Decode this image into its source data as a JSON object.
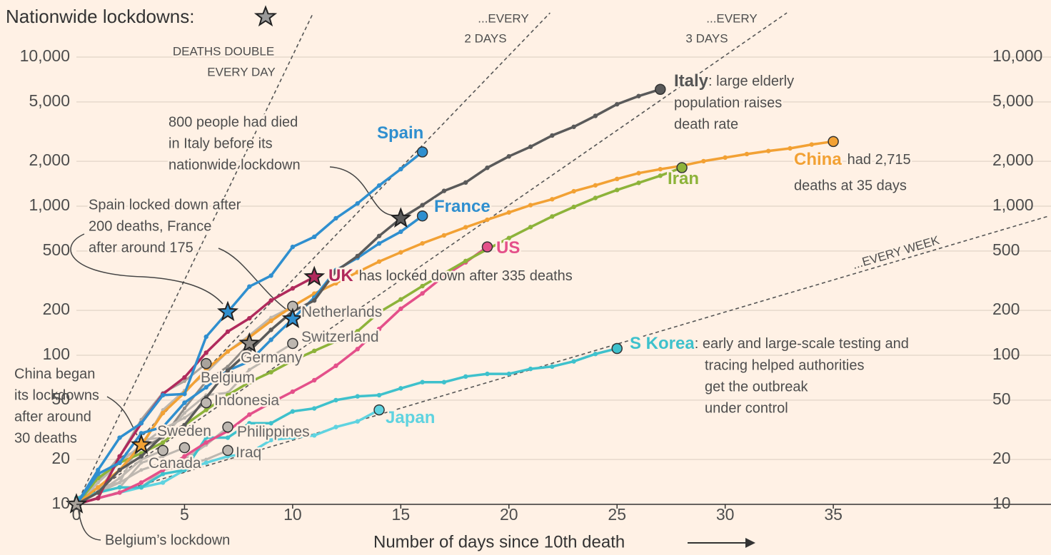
{
  "chart_data": {
    "type": "line",
    "title": "Nationwide lockdowns:",
    "x_label": "Number of days since 10th death",
    "yscale": "log",
    "xlim": [
      0,
      45
    ],
    "ylim": [
      10,
      10000
    ],
    "xticks": [
      0,
      5,
      10,
      15,
      20,
      25,
      30,
      35
    ],
    "yticks": [
      10,
      20,
      50,
      100,
      200,
      500,
      {
        "value": 1000,
        "label": "1,000"
      },
      {
        "value": 2000,
        "label": "2,000"
      },
      {
        "value": 5000,
        "label": "5,000"
      },
      {
        "value": 10000,
        "label": "10,000"
      }
    ],
    "grid": true,
    "x": [
      0,
      1,
      2,
      3,
      4,
      5,
      6,
      7,
      8,
      9,
      10,
      11,
      12,
      13,
      14,
      15,
      16,
      17,
      18,
      19,
      20,
      21,
      22,
      23,
      24,
      25,
      26,
      27,
      28,
      29,
      30,
      31,
      32,
      33,
      34,
      35
    ],
    "series": [
      {
        "name": "Netherlands",
        "color": "#bdb7b0",
        "values": [
          10,
          12,
          20,
          24,
          43,
          58,
          76,
          106,
          136,
          179,
          213,
          null,
          null,
          null,
          null,
          null,
          null,
          null,
          null,
          null,
          null,
          null,
          null,
          null,
          null,
          null,
          null,
          null,
          null,
          null,
          null,
          null,
          null,
          null,
          null,
          null
        ]
      },
      {
        "name": "Switzerland",
        "color": "#bdb7b0",
        "values": [
          11,
          13,
          14,
          27,
          28,
          41,
          54,
          56,
          80,
          98,
          120,
          null,
          null,
          null,
          null,
          null,
          null,
          null,
          null,
          null,
          null,
          null,
          null,
          null,
          null,
          null,
          null,
          null,
          null,
          null,
          null,
          null,
          null,
          null,
          null,
          null
        ]
      },
      {
        "name": "Germany",
        "color": "#8f8a85",
        "lockdown_day": 8,
        "values": [
          10,
          13,
          17,
          24,
          28,
          44,
          67,
          84,
          120,
          null,
          null,
          null,
          null,
          null,
          null,
          null,
          null,
          null,
          null,
          null,
          null,
          null,
          null,
          null,
          null,
          null,
          null,
          null,
          null,
          null,
          null,
          null,
          null,
          null,
          null,
          null
        ]
      },
      {
        "name": "Belgium",
        "color": "#a9a39c",
        "lockdown_day": 0,
        "values": [
          10,
          14,
          21,
          37,
          56,
          67,
          88,
          null,
          null,
          null,
          null,
          null,
          null,
          null,
          null,
          null,
          null,
          null,
          null,
          null,
          null,
          null,
          null,
          null,
          null,
          null,
          null,
          null,
          null,
          null,
          null,
          null,
          null,
          null,
          null,
          null
        ]
      },
      {
        "name": "Indonesia",
        "color": "#bdb7b0",
        "values": [
          10,
          14,
          19,
          25,
          32,
          38,
          48,
          null,
          null,
          null,
          null,
          null,
          null,
          null,
          null,
          null,
          null,
          null,
          null,
          null,
          null,
          null,
          null,
          null,
          null,
          null,
          null,
          null,
          null,
          null,
          null,
          null,
          null,
          null,
          null,
          null
        ]
      },
      {
        "name": "Sweden",
        "color": "#bdb7b0",
        "values": [
          10,
          12,
          15,
          20,
          23,
          null,
          null,
          null,
          null,
          null,
          null,
          null,
          null,
          null,
          null,
          null,
          null,
          null,
          null,
          null,
          null,
          null,
          null,
          null,
          null,
          null,
          null,
          null,
          null,
          null,
          null,
          null,
          null,
          null,
          null,
          null
        ]
      },
      {
        "name": "Canada",
        "color": "#bdb7b0",
        "values": [
          10,
          12,
          13,
          19,
          21,
          24,
          null,
          null,
          null,
          null,
          null,
          null,
          null,
          null,
          null,
          null,
          null,
          null,
          null,
          null,
          null,
          null,
          null,
          null,
          null,
          null,
          null,
          null,
          null,
          null,
          null,
          null,
          null,
          null,
          null,
          null
        ]
      },
      {
        "name": "Philippines",
        "color": "#bdb7b0",
        "values": [
          10,
          12,
          14,
          17,
          19,
          20,
          25,
          33,
          null,
          null,
          null,
          null,
          null,
          null,
          null,
          null,
          null,
          null,
          null,
          null,
          null,
          null,
          null,
          null,
          null,
          null,
          null,
          null,
          null,
          null,
          null,
          null,
          null,
          null,
          null,
          null
        ]
      },
      {
        "name": "Iraq",
        "color": "#bdb7b0",
        "values": [
          10,
          11,
          12,
          13,
          17,
          18,
          20,
          23,
          null,
          null,
          null,
          null,
          null,
          null,
          null,
          null,
          null,
          null,
          null,
          null,
          null,
          null,
          null,
          null,
          null,
          null,
          null,
          null,
          null,
          null,
          null,
          null,
          null,
          null,
          null,
          null
        ]
      },
      {
        "name": "Japan",
        "color": "#5fd3e0",
        "values": [
          10,
          11,
          12,
          13,
          14,
          17,
          19,
          21,
          22,
          27,
          28,
          29,
          33,
          36,
          43,
          null,
          null,
          null,
          null,
          null,
          null,
          null,
          null,
          null,
          null,
          null,
          null,
          null,
          null,
          null,
          null,
          null,
          null,
          null,
          null,
          null
        ]
      },
      {
        "name": "S Korea",
        "color": "#3ec1cc",
        "note": [
          ": early and large-scale testing and",
          "tracing helped authorities",
          "get the outbreak",
          "under control"
        ],
        "values": [
          11,
          12,
          13,
          13,
          16,
          17,
          28,
          28,
          35,
          35,
          42,
          44,
          50,
          53,
          54,
          60,
          66,
          66,
          72,
          75,
          75,
          81,
          84,
          91,
          102,
          111,
          null,
          null,
          null,
          null,
          null,
          null,
          null,
          null,
          null,
          null
        ]
      },
      {
        "name": "US",
        "color": "#e4508a",
        "values": [
          10,
          11,
          12,
          14,
          17,
          21,
          26,
          31,
          40,
          48,
          57,
          68,
          85,
          110,
          150,
          205,
          260,
          340,
          420,
          533,
          null,
          null,
          null,
          null,
          null,
          null,
          null,
          null,
          null,
          null,
          null,
          null,
          null,
          null,
          null,
          null
        ]
      },
      {
        "name": "Iran",
        "color": "#8db33a",
        "values": [
          10,
          15,
          19,
          22,
          26,
          34,
          43,
          54,
          66,
          77,
          92,
          107,
          124,
          145,
          194,
          237,
          291,
          354,
          429,
          514,
          611,
          724,
          853,
          988,
          1135,
          1284,
          1433,
          1600,
          1812,
          null,
          null,
          null,
          null,
          null,
          null,
          null
        ]
      },
      {
        "name": "China",
        "color": "#f2a134",
        "lockdown_day": 3,
        "note": [
          "had 2,715",
          "deaths at 35 days"
        ],
        "values": [
          10,
          13,
          17,
          25,
          41,
          56,
          80,
          106,
          132,
          170,
          213,
          259,
          304,
          361,
          425,
          490,
          563,
          637,
          722,
          811,
          908,
          1016,
          1113,
          1259,
          1380,
          1523,
          1665,
          1770,
          1868,
          2004,
          2118,
          2236,
          2345,
          2442,
          2592,
          2715
        ]
      },
      {
        "name": "UK",
        "color": "#b02a5c",
        "lockdown_day": 11,
        "note": [
          "has locked down after 335 deaths"
        ],
        "values": [
          10,
          11,
          21,
          35,
          55,
          71,
          104,
          144,
          177,
          233,
          281,
          335,
          null,
          null,
          null,
          null,
          null,
          null,
          null,
          null,
          null,
          null,
          null,
          null,
          null,
          null,
          null,
          null,
          null,
          null,
          null,
          null,
          null,
          null,
          null,
          null
        ]
      },
      {
        "name": "France",
        "color": "#2f8fcf",
        "lockdown_day": 10,
        "values": [
          10,
          16,
          19,
          30,
          33,
          48,
          61,
          79,
          91,
          127,
          175,
          244,
          372,
          450,
          562,
          674,
          860,
          null,
          null,
          null,
          null,
          null,
          null,
          null,
          null,
          null,
          null,
          null,
          null,
          null,
          null,
          null,
          null,
          null,
          null,
          null
        ]
      },
      {
        "name": "Italy",
        "color": "#5a5a5a",
        "lockdown_day": 15,
        "note": [
          ": large elderly",
          "population raises",
          "death rate"
        ],
        "values": [
          10,
          12,
          17,
          21,
          29,
          34,
          52,
          79,
          107,
          148,
          197,
          233,
          366,
          463,
          631,
          827,
          1016,
          1266,
          1441,
          1809,
          2158,
          2503,
          2978,
          3405,
          4032,
          4825,
          5476,
          6077,
          null,
          null,
          null,
          null,
          null,
          null,
          null,
          null
        ]
      },
      {
        "name": "Spain",
        "color": "#2f8fcf",
        "lockdown_day": 7,
        "values": [
          10,
          17,
          28,
          35,
          54,
          55,
          133,
          195,
          289,
          342,
          533,
          623,
          830,
          1043,
          1375,
          1772,
          2311,
          null,
          null,
          null,
          null,
          null,
          null,
          null,
          null,
          null,
          null,
          null,
          null,
          null,
          null,
          null,
          null,
          null,
          null,
          null
        ]
      }
    ],
    "reference_lines": [
      {
        "doubling_days": 1,
        "label": [
          "DEATHS DOUBLE",
          "EVERY DAY"
        ]
      },
      {
        "doubling_days": 2,
        "label": [
          "...EVERY",
          "2 DAYS"
        ]
      },
      {
        "doubling_days": 3,
        "label": [
          "...EVERY",
          "3 DAYS"
        ]
      },
      {
        "doubling_days": 7,
        "label": [
          "...EVERY WEEK"
        ]
      }
    ],
    "annotations": [
      {
        "text": [
          "800 people had died",
          "in Italy before its",
          "nationwide lockdown"
        ]
      },
      {
        "text": [
          "Spain locked down after",
          "200 deaths, France",
          "after around 175"
        ]
      },
      {
        "text": [
          "China began",
          "its lockdowns",
          "after around",
          "30 deaths"
        ]
      },
      {
        "text": [
          "Belgium’s lockdown"
        ]
      }
    ]
  }
}
